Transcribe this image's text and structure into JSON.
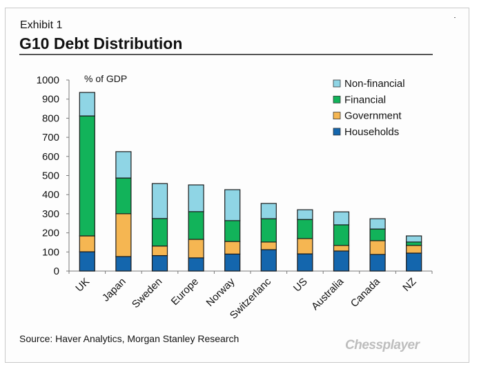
{
  "header": {
    "exhibit": "Exhibit 1",
    "title": "G10 Debt Distribution"
  },
  "footer": {
    "source": "Source: Haver Analytics, Morgan Stanley Research",
    "watermark": "Chessplayer"
  },
  "colors": {
    "Households": "#1466ad",
    "Government": "#f5b652",
    "Financial": "#12b35a",
    "Non-financial": "#8fd5e5"
  },
  "chart_data": {
    "type": "bar",
    "stacked": true,
    "title": "G10 Debt Distribution",
    "ylabel": "% of GDP",
    "xlabel": "",
    "ylim": [
      0,
      1000
    ],
    "yticks": [
      0,
      100,
      200,
      300,
      400,
      500,
      600,
      700,
      800,
      900,
      1000
    ],
    "categories": [
      "UK",
      "Japan",
      "Sweden",
      "Europe",
      "Norway",
      "Switzerland",
      "US",
      "Australia",
      "Canada",
      "NZ"
    ],
    "category_labels_displayed": [
      "UK",
      "Japan",
      "Sweden",
      "Europe",
      "Norway",
      "Switzerlanc",
      "US",
      "Australia",
      "Canada",
      "NZ"
    ],
    "legend": [
      "Non-financial",
      "Financial",
      "Government",
      "Households"
    ],
    "legend_position": "top-right",
    "grid": false,
    "series": [
      {
        "name": "Households",
        "values": [
          101,
          76,
          81,
          69,
          89,
          112,
          90,
          105,
          87,
          94
        ]
      },
      {
        "name": "Government",
        "values": [
          83,
          224,
          50,
          97,
          66,
          40,
          80,
          29,
          72,
          40
        ]
      },
      {
        "name": "Financial",
        "values": [
          628,
          187,
          144,
          145,
          109,
          122,
          100,
          108,
          61,
          18
        ]
      },
      {
        "name": "Non-financial",
        "values": [
          123,
          138,
          183,
          140,
          162,
          80,
          51,
          68,
          54,
          32
        ]
      }
    ],
    "totals": [
      935,
      625,
      458,
      451,
      426,
      354,
      321,
      310,
      274,
      184
    ]
  }
}
